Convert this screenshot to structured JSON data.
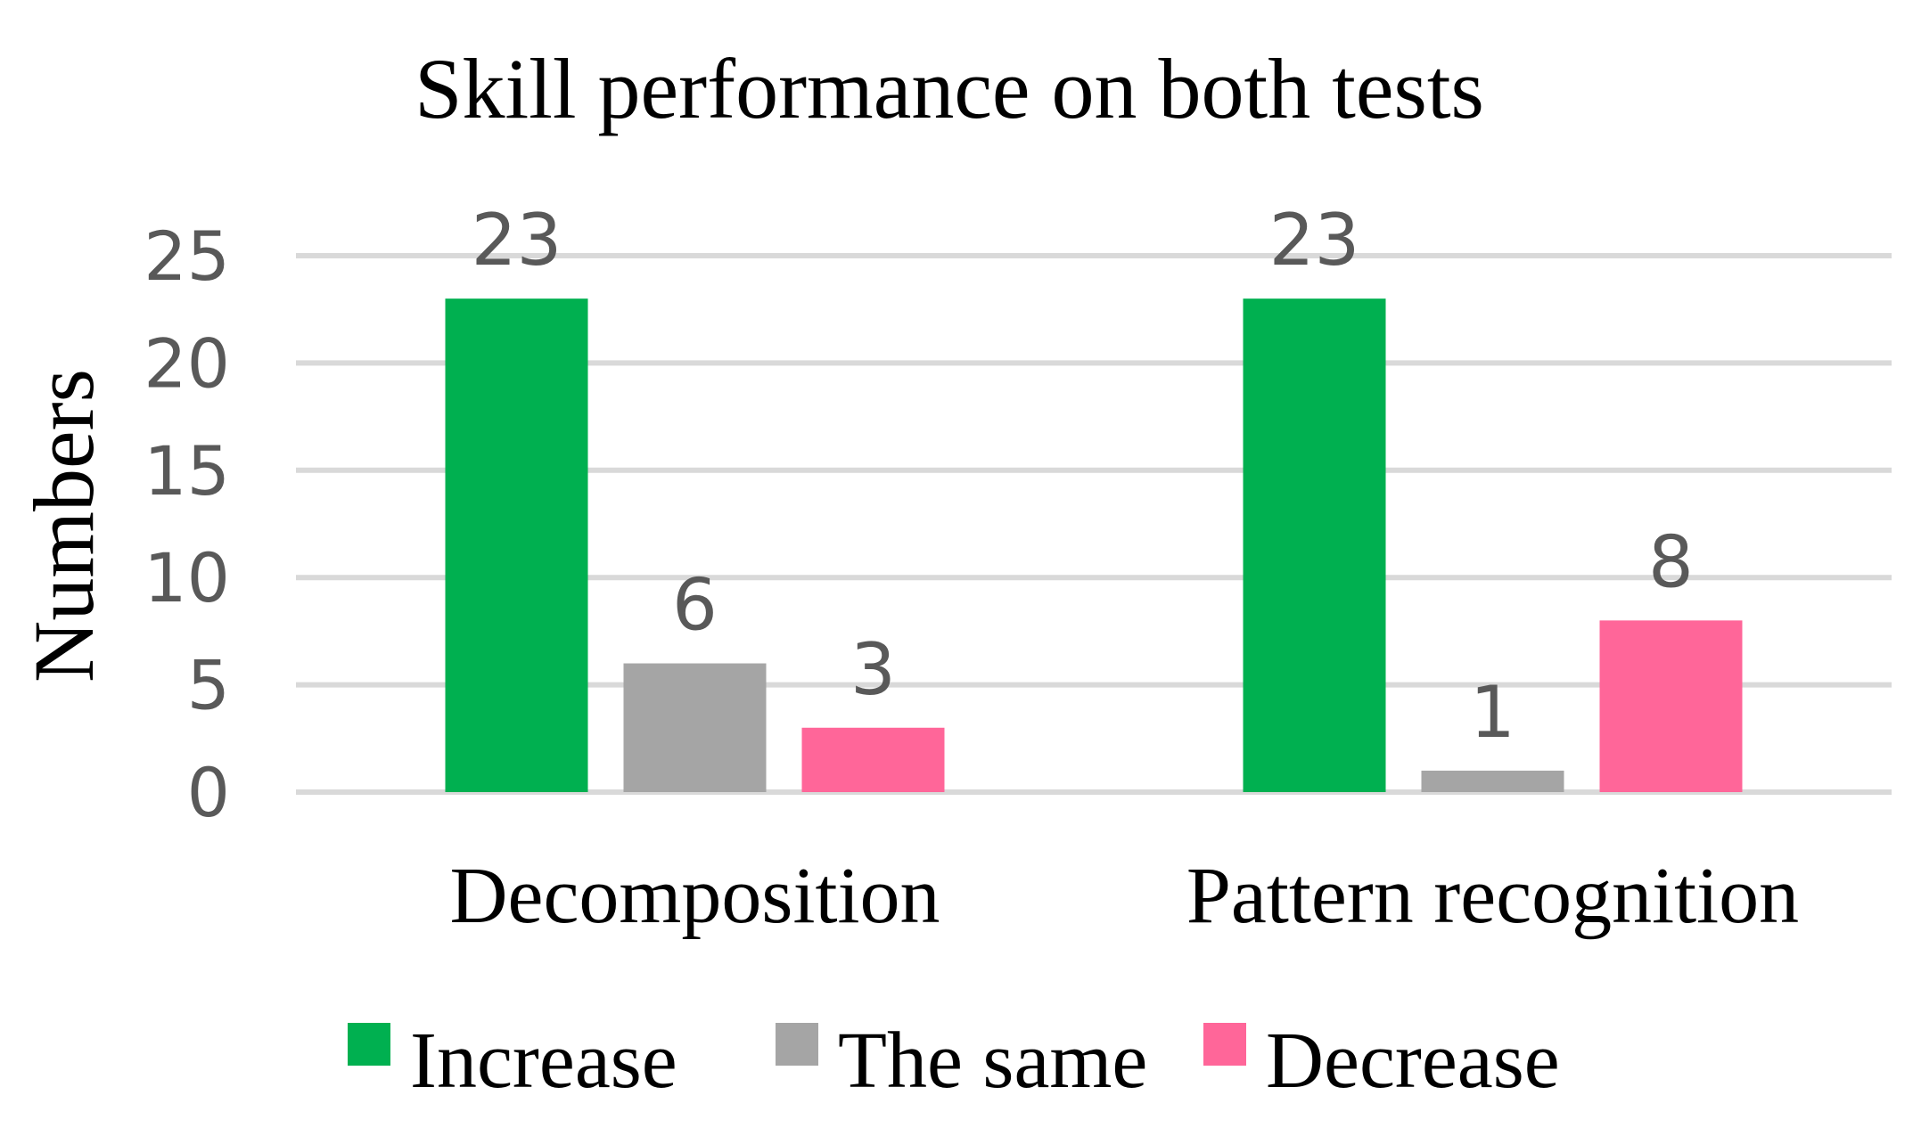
{
  "chart_data": {
    "type": "bar",
    "title": "Skill performance on both tests",
    "ylabel": "Numbers",
    "xlabel": "",
    "categories": [
      "Decomposition",
      "Pattern recognition"
    ],
    "series": [
      {
        "name": "Increase",
        "values": [
          23,
          23
        ],
        "color": "#00B050"
      },
      {
        "name": "The same",
        "values": [
          6,
          1
        ],
        "color": "#A5A5A5"
      },
      {
        "name": "Decrease",
        "values": [
          3,
          8
        ],
        "color": "#FF6699"
      }
    ],
    "ylim": [
      0,
      25
    ],
    "yticks": [
      0,
      5,
      10,
      15,
      20,
      25
    ],
    "grid": true,
    "data_labels": true,
    "legend_position": "bottom"
  }
}
